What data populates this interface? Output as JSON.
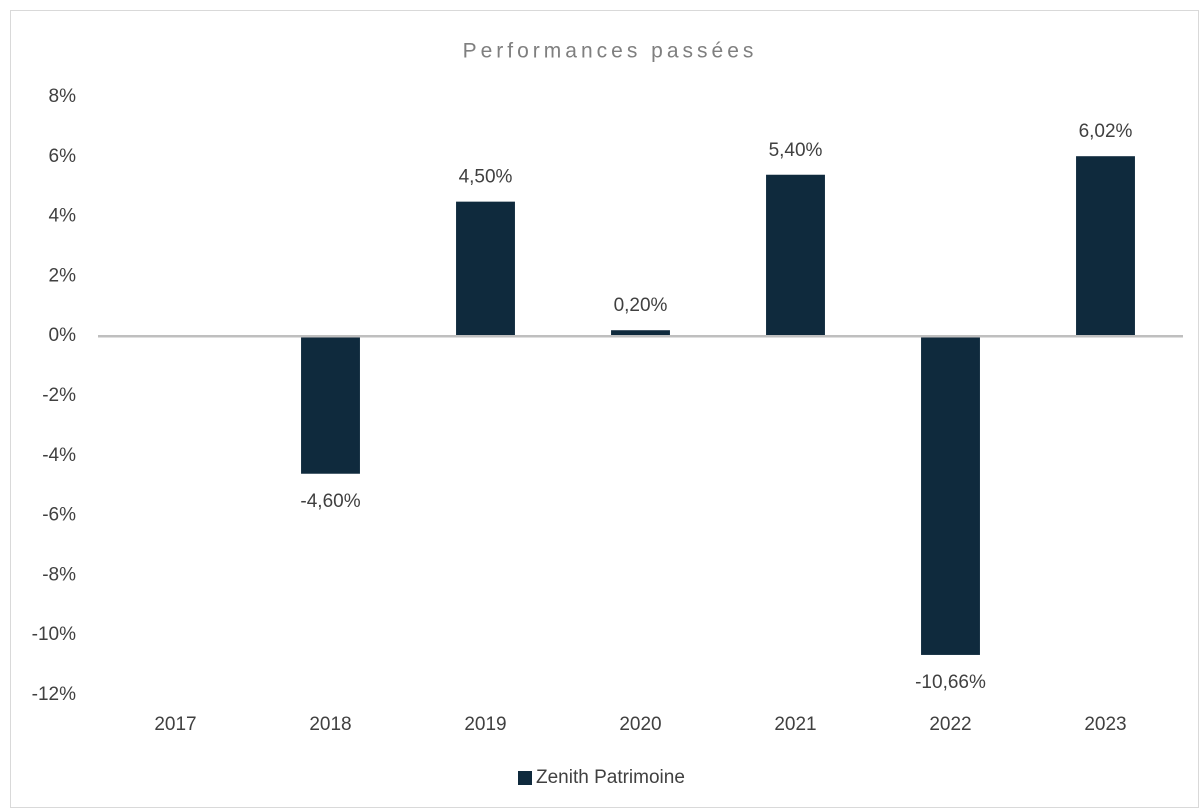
{
  "chart_data": {
    "type": "bar",
    "title": "Performances passées",
    "categories": [
      "2017",
      "2018",
      "2019",
      "2020",
      "2021",
      "2022",
      "2023"
    ],
    "series": [
      {
        "name": "Zenith Patrimoine",
        "color": "#0f2a3d",
        "values": [
          null,
          -4.6,
          4.5,
          0.2,
          5.4,
          -10.66,
          6.02
        ],
        "value_labels": [
          null,
          "-4,60%",
          "4,50%",
          "0,20%",
          "5,40%",
          "-10,66%",
          "6,02%"
        ]
      }
    ],
    "ylim": [
      -12,
      8
    ],
    "yticks": [
      {
        "value": 8,
        "label": "8%"
      },
      {
        "value": 6,
        "label": "6%"
      },
      {
        "value": 4,
        "label": "4%"
      },
      {
        "value": 2,
        "label": "2%"
      },
      {
        "value": 0,
        "label": "0%"
      },
      {
        "value": -2,
        "label": "-2%"
      },
      {
        "value": -4,
        "label": "-4%"
      },
      {
        "value": -6,
        "label": "-6%"
      },
      {
        "value": -8,
        "label": "-8%"
      },
      {
        "value": -10,
        "label": "-10%"
      },
      {
        "value": -12,
        "label": "-12%"
      }
    ],
    "grid": false,
    "legend": "bottom"
  }
}
